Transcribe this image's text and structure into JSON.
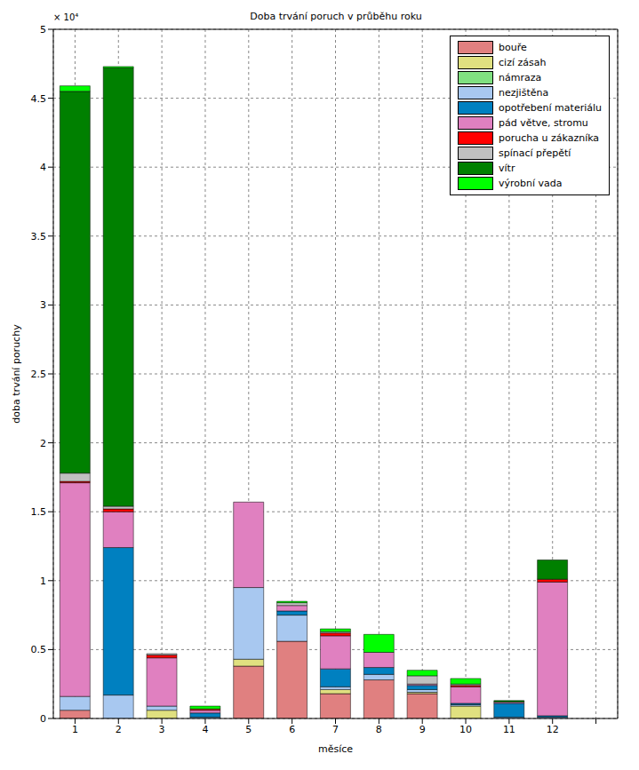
{
  "chart_data": {
    "type": "bar",
    "title": "Doba trvání poruch v průběhu roku",
    "x_label": "měsíce",
    "y_label": "doba trvání poruchy",
    "annotations": [
      "× 10⁴"
    ],
    "categories": [
      "1",
      "2",
      "3",
      "4",
      "5",
      "6",
      "7",
      "8",
      "9",
      "10",
      "11",
      "12",
      null
    ],
    "series": [
      {
        "name": "bouře",
        "color": "#e08080",
        "values": [
          0.06,
          0,
          0,
          0,
          0.38,
          0.56,
          0.18,
          0.28,
          0.18,
          0,
          0,
          0,
          null
        ]
      },
      {
        "name": "cizí zásah",
        "color": "#e0e080",
        "values": [
          0,
          0,
          0.06,
          0,
          0.05,
          0,
          0.03,
          0,
          0.01,
          0.09,
          0,
          0,
          null
        ]
      },
      {
        "name": "námraza",
        "color": "#80e080",
        "values": [
          0,
          0,
          0,
          0,
          0,
          0,
          0,
          0,
          0,
          0,
          0,
          0,
          null
        ]
      },
      {
        "name": "nezjištěna",
        "color": "#a8c8f0",
        "values": [
          0.1,
          0.17,
          0.03,
          0.01,
          0.52,
          0.19,
          0.02,
          0.04,
          0.02,
          0.01,
          0.01,
          0.01,
          null
        ]
      },
      {
        "name": "opotřebení materiálu",
        "color": "#0080c0",
        "values": [
          0,
          1.07,
          0,
          0.03,
          0,
          0.03,
          0.13,
          0.05,
          0.03,
          0.01,
          0.1,
          0.01,
          null
        ]
      },
      {
        "name": "pád větve, stromu",
        "color": "#e080c0",
        "values": [
          1.55,
          0.26,
          0.35,
          0.02,
          0.62,
          0.04,
          0.24,
          0.11,
          0.01,
          0.12,
          0.01,
          0.97,
          null
        ]
      },
      {
        "name": "porucha u zákazníka",
        "color": "#ff0000",
        "values": [
          0.01,
          0.02,
          0.02,
          0.01,
          0,
          0,
          0.02,
          0,
          0,
          0.01,
          0,
          0.02,
          null
        ]
      },
      {
        "name": "spínací přepětí",
        "color": "#c0c0c0",
        "values": [
          0.06,
          0.02,
          0.01,
          0,
          0,
          0.02,
          0.01,
          0,
          0.06,
          0.01,
          0,
          0,
          null
        ]
      },
      {
        "name": "vítr",
        "color": "#008000",
        "values": [
          2.77,
          3.18,
          0,
          0,
          0,
          0,
          0,
          0,
          0,
          0,
          0.01,
          0.14,
          null
        ]
      },
      {
        "name": "výrobní vada",
        "color": "#00ff00",
        "values": [
          0.04,
          0.01,
          0,
          0.02,
          0,
          0.01,
          0.02,
          0.13,
          0.04,
          0.04,
          0,
          0,
          null
        ]
      }
    ],
    "ylim": [
      0,
      5
    ],
    "yticks": [
      0,
      0.5,
      1,
      1.5,
      2,
      2.5,
      3,
      3.5,
      4,
      4.5,
      5
    ],
    "stacked": true,
    "grid": true,
    "legend": "upper right"
  }
}
